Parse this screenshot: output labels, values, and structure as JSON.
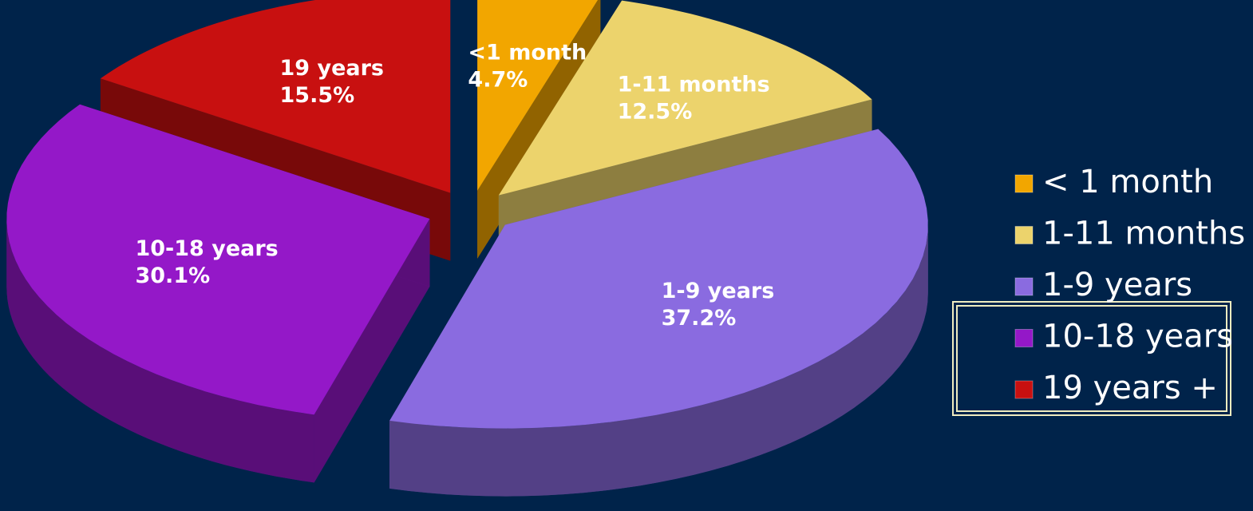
{
  "chart_data": {
    "type": "pie",
    "categories": [
      "< 1 month",
      "1-11 months",
      "1-9 years",
      "10-18 years",
      "19 years +"
    ],
    "slice_labels": [
      "<1 month",
      "1-11 months",
      "1-9 years",
      "10-18 years",
      "19 years"
    ],
    "values": [
      4.7,
      12.5,
      37.2,
      30.1,
      15.5
    ],
    "value_labels": [
      "4.7%",
      "12.5%",
      "37.2%",
      "30.1%",
      "15.5%"
    ],
    "colors": [
      "#f2a600",
      "#ecd36c",
      "#8a6be0",
      "#9418c8",
      "#c81010"
    ],
    "legend": "right"
  }
}
